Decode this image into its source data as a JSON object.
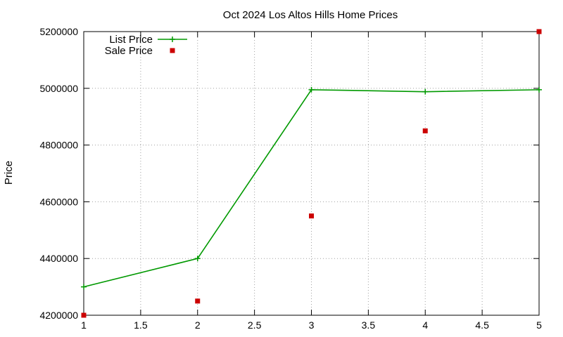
{
  "chart_data": {
    "type": "line",
    "title": "Oct 2024 Los Altos Hills Home Prices",
    "xlabel": "",
    "ylabel": "Price",
    "xlim": [
      1,
      5
    ],
    "ylim": [
      4200000,
      5200000
    ],
    "xticks": [
      1,
      1.5,
      2,
      2.5,
      3,
      3.5,
      4,
      4.5,
      5
    ],
    "xtick_labels": [
      "1",
      "1.5",
      "2",
      "2.5",
      "3",
      "3.5",
      "4",
      "4.5",
      "5"
    ],
    "yticks": [
      4200000,
      4400000,
      4600000,
      4800000,
      5000000,
      5200000
    ],
    "ytick_labels": [
      "4200000",
      "4400000",
      "4600000",
      "4800000",
      "5000000",
      "5200000"
    ],
    "grid": true,
    "legend_position": "top-left",
    "series": [
      {
        "name": "List Price",
        "style": "linespoints",
        "marker": "plus",
        "color": "#009900",
        "x": [
          1,
          2,
          3,
          4,
          5
        ],
        "y": [
          4300000,
          4400000,
          4995000,
          4988000,
          4995000
        ]
      },
      {
        "name": "Sale Price",
        "style": "points",
        "marker": "square",
        "color": "#cc0000",
        "x": [
          1,
          2,
          3,
          4,
          5
        ],
        "y": [
          4200000,
          4250000,
          4550000,
          4850000,
          5200000
        ]
      }
    ]
  }
}
